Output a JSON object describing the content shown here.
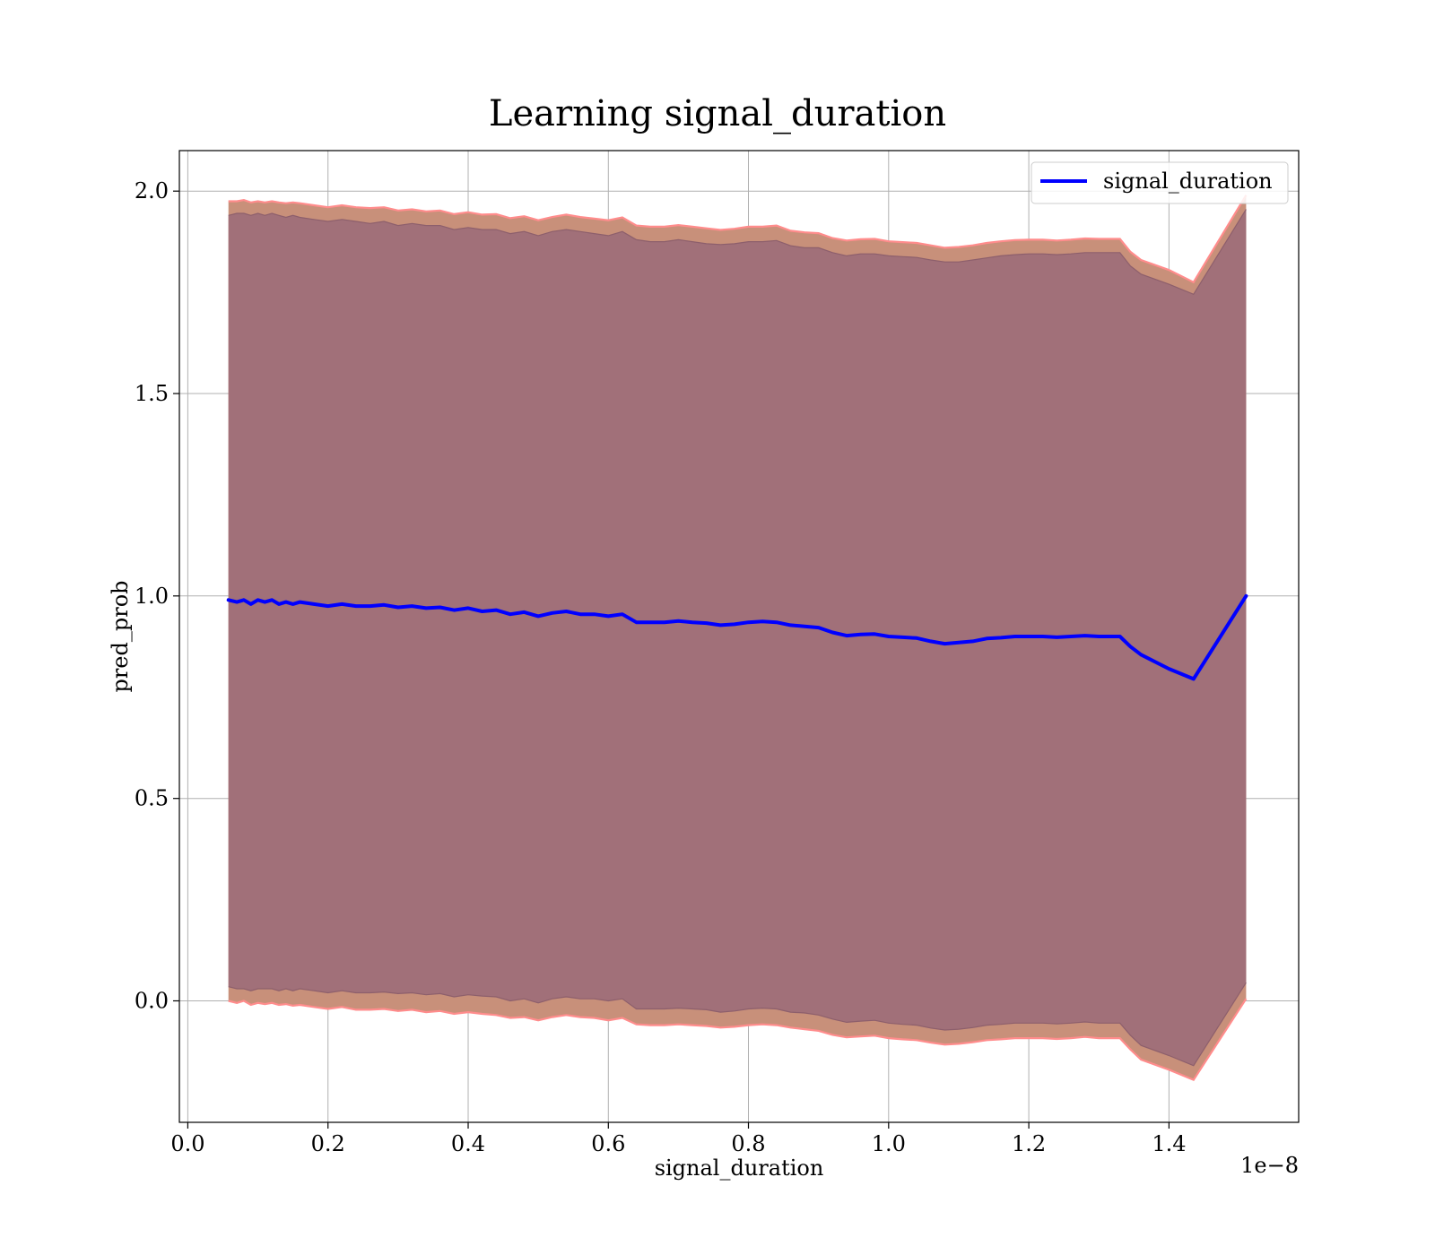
{
  "chart_data": {
    "type": "line",
    "title": "Learning signal_duration",
    "xlabel": "signal_duration",
    "ylabel": "pred_prob",
    "x_offset_label": "1e−8",
    "xlim": [
      -0.012,
      1.585
    ],
    "ylim": [
      -0.3,
      2.1
    ],
    "grid": true,
    "legend_position": "upper-right",
    "x_ticks": [
      {
        "value": 0.0,
        "label": "0.0"
      },
      {
        "value": 0.2,
        "label": "0.2"
      },
      {
        "value": 0.4,
        "label": "0.4"
      },
      {
        "value": 0.6,
        "label": "0.6"
      },
      {
        "value": 0.8,
        "label": "0.8"
      },
      {
        "value": 1.0,
        "label": "1.0"
      },
      {
        "value": 1.2,
        "label": "1.2"
      },
      {
        "value": 1.4,
        "label": "1.4"
      }
    ],
    "y_ticks": [
      {
        "value": 0.0,
        "label": "0.0"
      },
      {
        "value": 0.5,
        "label": "0.5"
      },
      {
        "value": 1.0,
        "label": "1.0"
      },
      {
        "value": 1.5,
        "label": "1.5"
      },
      {
        "value": 2.0,
        "label": "2.0"
      }
    ],
    "series": [
      {
        "name": "signal_duration",
        "color": "#0000ff",
        "x": [
          0.058,
          0.07,
          0.08,
          0.09,
          0.1,
          0.11,
          0.12,
          0.13,
          0.14,
          0.15,
          0.16,
          0.18,
          0.2,
          0.22,
          0.24,
          0.26,
          0.28,
          0.3,
          0.32,
          0.34,
          0.36,
          0.38,
          0.4,
          0.42,
          0.44,
          0.46,
          0.48,
          0.5,
          0.52,
          0.54,
          0.56,
          0.58,
          0.6,
          0.62,
          0.64,
          0.66,
          0.68,
          0.7,
          0.72,
          0.74,
          0.76,
          0.78,
          0.8,
          0.82,
          0.84,
          0.86,
          0.88,
          0.9,
          0.92,
          0.94,
          0.96,
          0.98,
          1.0,
          1.02,
          1.04,
          1.06,
          1.08,
          1.1,
          1.12,
          1.14,
          1.16,
          1.18,
          1.2,
          1.22,
          1.24,
          1.26,
          1.28,
          1.3,
          1.33,
          1.345,
          1.36,
          1.4,
          1.435,
          1.51
        ],
        "y": [
          0.99,
          0.985,
          0.99,
          0.98,
          0.99,
          0.985,
          0.99,
          0.98,
          0.985,
          0.98,
          0.985,
          0.98,
          0.975,
          0.98,
          0.975,
          0.975,
          0.978,
          0.972,
          0.975,
          0.97,
          0.972,
          0.965,
          0.97,
          0.962,
          0.965,
          0.955,
          0.96,
          0.95,
          0.958,
          0.962,
          0.955,
          0.955,
          0.95,
          0.955,
          0.935,
          0.935,
          0.935,
          0.938,
          0.935,
          0.933,
          0.928,
          0.93,
          0.935,
          0.937,
          0.935,
          0.928,
          0.925,
          0.922,
          0.91,
          0.902,
          0.905,
          0.906,
          0.9,
          0.898,
          0.896,
          0.888,
          0.882,
          0.885,
          0.888,
          0.895,
          0.897,
          0.9,
          0.9,
          0.9,
          0.898,
          0.9,
          0.902,
          0.9,
          0.9,
          0.875,
          0.855,
          0.82,
          0.795,
          1.0
        ],
        "inner_band": {
          "upper": [
            1.94,
            1.945,
            1.945,
            1.94,
            1.945,
            1.94,
            1.945,
            1.94,
            1.935,
            1.94,
            1.935,
            1.93,
            1.925,
            1.93,
            1.925,
            1.92,
            1.925,
            1.915,
            1.92,
            1.915,
            1.915,
            1.905,
            1.91,
            1.905,
            1.905,
            1.895,
            1.9,
            1.89,
            1.9,
            1.905,
            1.9,
            1.895,
            1.89,
            1.9,
            1.88,
            1.875,
            1.875,
            1.88,
            1.875,
            1.87,
            1.868,
            1.87,
            1.875,
            1.875,
            1.878,
            1.865,
            1.86,
            1.86,
            1.848,
            1.84,
            1.845,
            1.845,
            1.84,
            1.838,
            1.836,
            1.83,
            1.825,
            1.825,
            1.83,
            1.835,
            1.84,
            1.843,
            1.845,
            1.845,
            1.843,
            1.845,
            1.848,
            1.848,
            1.848,
            1.815,
            1.795,
            1.77,
            1.745,
            1.955
          ],
          "lower": [
            0.035,
            0.03,
            0.03,
            0.025,
            0.03,
            0.03,
            0.03,
            0.025,
            0.03,
            0.025,
            0.03,
            0.025,
            0.02,
            0.025,
            0.02,
            0.02,
            0.022,
            0.018,
            0.02,
            0.015,
            0.018,
            0.01,
            0.015,
            0.012,
            0.01,
            0.0,
            0.005,
            -0.005,
            0.005,
            0.01,
            0.005,
            0.005,
            0.0,
            0.005,
            -0.02,
            -0.02,
            -0.02,
            -0.018,
            -0.02,
            -0.022,
            -0.028,
            -0.025,
            -0.02,
            -0.018,
            -0.02,
            -0.028,
            -0.03,
            -0.035,
            -0.045,
            -0.053,
            -0.05,
            -0.048,
            -0.055,
            -0.058,
            -0.06,
            -0.067,
            -0.072,
            -0.07,
            -0.066,
            -0.06,
            -0.058,
            -0.055,
            -0.055,
            -0.055,
            -0.057,
            -0.055,
            -0.052,
            -0.055,
            -0.055,
            -0.085,
            -0.11,
            -0.135,
            -0.16,
            0.045
          ]
        },
        "outer_band": {
          "upper": [
            1.975,
            1.975,
            1.978,
            1.972,
            1.975,
            1.972,
            1.975,
            1.972,
            1.97,
            1.972,
            1.97,
            1.965,
            1.96,
            1.965,
            1.96,
            1.958,
            1.96,
            1.952,
            1.955,
            1.95,
            1.952,
            1.943,
            1.948,
            1.942,
            1.943,
            1.933,
            1.938,
            1.928,
            1.936,
            1.942,
            1.936,
            1.932,
            1.928,
            1.935,
            1.915,
            1.912,
            1.912,
            1.916,
            1.912,
            1.908,
            1.904,
            1.907,
            1.912,
            1.912,
            1.915,
            1.902,
            1.898,
            1.896,
            1.884,
            1.878,
            1.881,
            1.882,
            1.876,
            1.874,
            1.872,
            1.866,
            1.86,
            1.862,
            1.866,
            1.872,
            1.876,
            1.879,
            1.88,
            1.88,
            1.878,
            1.88,
            1.883,
            1.882,
            1.882,
            1.85,
            1.83,
            1.805,
            1.775,
            1.99
          ],
          "lower": [
            0.0,
            -0.005,
            0.0,
            -0.01,
            -0.005,
            -0.008,
            -0.005,
            -0.01,
            -0.008,
            -0.012,
            -0.01,
            -0.015,
            -0.02,
            -0.015,
            -0.022,
            -0.022,
            -0.02,
            -0.025,
            -0.022,
            -0.028,
            -0.025,
            -0.032,
            -0.028,
            -0.032,
            -0.035,
            -0.042,
            -0.04,
            -0.048,
            -0.04,
            -0.035,
            -0.04,
            -0.042,
            -0.048,
            -0.042,
            -0.058,
            -0.06,
            -0.06,
            -0.058,
            -0.06,
            -0.062,
            -0.066,
            -0.064,
            -0.06,
            -0.058,
            -0.06,
            -0.066,
            -0.07,
            -0.074,
            -0.084,
            -0.09,
            -0.088,
            -0.086,
            -0.092,
            -0.095,
            -0.097,
            -0.103,
            -0.108,
            -0.106,
            -0.102,
            -0.097,
            -0.095,
            -0.092,
            -0.092,
            -0.092,
            -0.094,
            -0.092,
            -0.089,
            -0.092,
            -0.092,
            -0.12,
            -0.145,
            -0.17,
            -0.195,
            0.005
          ]
        }
      }
    ]
  },
  "legend": {
    "label": "signal_duration"
  }
}
